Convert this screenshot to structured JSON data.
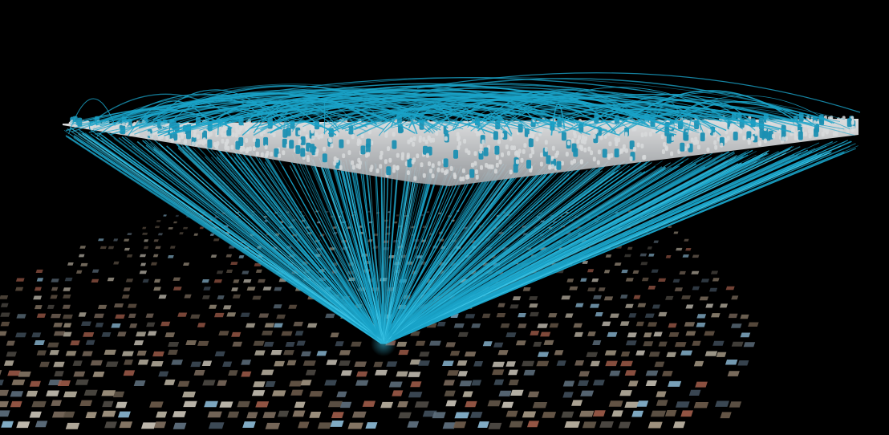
{
  "colors": {
    "background": "#000000",
    "link_line": "#1aa3c8",
    "link_line_highlight": "#3cc6e8",
    "plate": "#d8dadc",
    "plate_shadow": "#9ea2a6",
    "node": "#1b8fb2",
    "tile_palette": [
      "#6b5a4a",
      "#8a7a68",
      "#4e4a44",
      "#a59884",
      "#3f4d5a",
      "#7a6a5c",
      "#b8b0a0",
      "#5d6e7c",
      "#9c5a48",
      "#87b4cf",
      "#615548",
      "#c7c1b5"
    ]
  },
  "objects": {
    "image_grid": "image-tile-grid",
    "link_bundle": "link-bundle",
    "node_plate": "node-plate",
    "arc_canopy": "arc-canopy"
  }
}
